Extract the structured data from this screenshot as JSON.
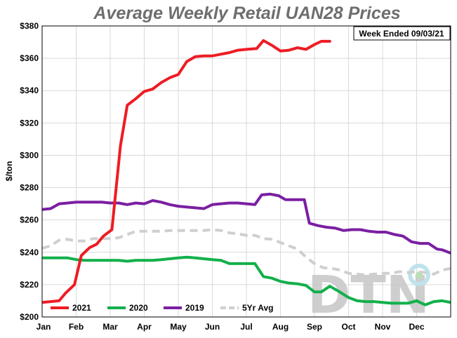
{
  "chart_data": {
    "type": "line",
    "title": "Average Weekly Retail UAN28 Prices",
    "ylabel": "$/ton",
    "annotation": "Week Ended 09/03/21",
    "watermark": "DTN",
    "ylim": [
      200,
      380
    ],
    "yticks": [
      200,
      220,
      240,
      260,
      280,
      300,
      320,
      340,
      360,
      380
    ],
    "ytick_labels": [
      "$200",
      "$220",
      "$240",
      "$260",
      "$280",
      "$300",
      "$320",
      "$340",
      "$360",
      "$380"
    ],
    "xlim": [
      0,
      12
    ],
    "xticks": [
      0,
      1,
      2,
      3,
      4,
      5,
      6,
      7,
      8,
      9,
      10,
      11
    ],
    "xtick_labels": [
      "Jan",
      "Feb",
      "Mar",
      "Apr",
      "May",
      "Jun",
      "Jul",
      "Aug",
      "Sep",
      "Oct",
      "Nov",
      "Dec"
    ],
    "grid": true,
    "legend_position": "bottom",
    "series": [
      {
        "name": "2021",
        "color": "#ee1c24",
        "dashed": false,
        "points": [
          [
            0,
            209
          ],
          [
            0.25,
            209.5
          ],
          [
            0.5,
            210
          ],
          [
            0.7,
            215
          ],
          [
            0.95,
            220
          ],
          [
            1.15,
            238
          ],
          [
            1.4,
            243
          ],
          [
            1.6,
            245
          ],
          [
            1.8,
            250
          ],
          [
            2.05,
            254
          ],
          [
            2.3,
            306
          ],
          [
            2.5,
            331
          ],
          [
            2.75,
            335
          ],
          [
            3.0,
            339.5
          ],
          [
            3.25,
            341
          ],
          [
            3.5,
            345
          ],
          [
            3.75,
            348
          ],
          [
            4.0,
            350
          ],
          [
            4.25,
            358
          ],
          [
            4.5,
            361
          ],
          [
            4.75,
            361.5
          ],
          [
            5.0,
            361.5
          ],
          [
            5.25,
            362.5
          ],
          [
            5.5,
            363.5
          ],
          [
            5.75,
            365
          ],
          [
            6.0,
            365.5
          ],
          [
            6.3,
            366
          ],
          [
            6.5,
            371
          ],
          [
            6.75,
            368
          ],
          [
            7.0,
            364.5
          ],
          [
            7.25,
            365
          ],
          [
            7.5,
            366.5
          ],
          [
            7.75,
            365.5
          ],
          [
            8.0,
            368.5
          ],
          [
            8.2,
            370.5
          ],
          [
            8.45,
            370.5
          ]
        ]
      },
      {
        "name": "2020",
        "color": "#12b04b",
        "dashed": false,
        "points": [
          [
            0,
            236.5
          ],
          [
            0.25,
            236.5
          ],
          [
            0.5,
            236.5
          ],
          [
            0.75,
            236.5
          ],
          [
            1.0,
            235.5
          ],
          [
            1.25,
            235
          ],
          [
            1.5,
            235
          ],
          [
            1.75,
            235
          ],
          [
            2.0,
            235
          ],
          [
            2.25,
            235
          ],
          [
            2.5,
            234.5
          ],
          [
            2.75,
            235
          ],
          [
            3.0,
            235
          ],
          [
            3.25,
            235
          ],
          [
            3.5,
            235.5
          ],
          [
            3.75,
            236
          ],
          [
            4.0,
            236.5
          ],
          [
            4.25,
            237
          ],
          [
            4.5,
            236.5
          ],
          [
            4.75,
            236
          ],
          [
            5.0,
            235.5
          ],
          [
            5.25,
            235
          ],
          [
            5.5,
            233
          ],
          [
            5.75,
            233
          ],
          [
            6.0,
            233
          ],
          [
            6.25,
            233
          ],
          [
            6.5,
            225
          ],
          [
            6.75,
            224
          ],
          [
            7.0,
            222
          ],
          [
            7.25,
            221
          ],
          [
            7.5,
            220.5
          ],
          [
            7.75,
            219.5
          ],
          [
            8.0,
            215.5
          ],
          [
            8.2,
            215.5
          ],
          [
            8.45,
            219
          ],
          [
            8.7,
            216
          ],
          [
            9.0,
            212
          ],
          [
            9.25,
            210
          ],
          [
            9.5,
            209.5
          ],
          [
            9.75,
            209.5
          ],
          [
            10.0,
            209
          ],
          [
            10.25,
            208.5
          ],
          [
            10.5,
            208.5
          ],
          [
            10.75,
            208.5
          ],
          [
            11.0,
            210
          ],
          [
            11.1,
            209
          ],
          [
            11.25,
            207.5
          ],
          [
            11.5,
            209.5
          ],
          [
            11.75,
            210
          ],
          [
            12.0,
            209
          ]
        ]
      },
      {
        "name": "2019",
        "color": "#7b1fa2",
        "dashed": false,
        "points": [
          [
            0,
            266.5
          ],
          [
            0.25,
            267
          ],
          [
            0.5,
            270
          ],
          [
            0.75,
            270.5
          ],
          [
            1.0,
            271
          ],
          [
            1.25,
            271
          ],
          [
            1.5,
            271
          ],
          [
            1.75,
            271
          ],
          [
            2.0,
            270.5
          ],
          [
            2.25,
            270.5
          ],
          [
            2.5,
            269.5
          ],
          [
            2.75,
            270.5
          ],
          [
            3.0,
            270
          ],
          [
            3.25,
            272
          ],
          [
            3.5,
            271
          ],
          [
            3.75,
            269.5
          ],
          [
            4.0,
            268.5
          ],
          [
            4.25,
            268
          ],
          [
            4.5,
            267.5
          ],
          [
            4.75,
            267
          ],
          [
            5.0,
            269.5
          ],
          [
            5.25,
            270
          ],
          [
            5.5,
            270.5
          ],
          [
            5.75,
            270.5
          ],
          [
            6.0,
            270
          ],
          [
            6.25,
            269.5
          ],
          [
            6.45,
            275.5
          ],
          [
            6.7,
            276
          ],
          [
            6.95,
            275
          ],
          [
            7.15,
            272.5
          ],
          [
            7.4,
            272.5
          ],
          [
            7.7,
            272.5
          ],
          [
            7.85,
            258
          ],
          [
            8.1,
            256.5
          ],
          [
            8.35,
            255.5
          ],
          [
            8.6,
            255
          ],
          [
            8.85,
            253.5
          ],
          [
            9.1,
            254
          ],
          [
            9.35,
            254
          ],
          [
            9.6,
            253
          ],
          [
            9.85,
            252.5
          ],
          [
            10.1,
            252.5
          ],
          [
            10.35,
            251
          ],
          [
            10.6,
            250
          ],
          [
            10.85,
            246.5
          ],
          [
            11.1,
            245.5
          ],
          [
            11.35,
            245.5
          ],
          [
            11.6,
            242
          ],
          [
            11.75,
            241.5
          ],
          [
            12.0,
            239.5
          ],
          [
            12.25,
            240
          ]
        ]
      },
      {
        "name": "5Yr Avg",
        "color": "#cfcfcf",
        "dashed": true,
        "points": [
          [
            0,
            242.5
          ],
          [
            0.25,
            244
          ],
          [
            0.5,
            247.5
          ],
          [
            0.75,
            248
          ],
          [
            1.0,
            247
          ],
          [
            1.25,
            247
          ],
          [
            1.5,
            248.5
          ],
          [
            1.75,
            248.5
          ],
          [
            2.0,
            248.5
          ],
          [
            2.25,
            249
          ],
          [
            2.5,
            251
          ],
          [
            2.75,
            253
          ],
          [
            3.0,
            253
          ],
          [
            3.25,
            253
          ],
          [
            3.5,
            253
          ],
          [
            3.75,
            253.5
          ],
          [
            4.0,
            253.5
          ],
          [
            4.25,
            253.5
          ],
          [
            4.5,
            253.5
          ],
          [
            4.75,
            253.5
          ],
          [
            5.0,
            254
          ],
          [
            5.25,
            253.5
          ],
          [
            5.5,
            252
          ],
          [
            5.75,
            251.5
          ],
          [
            6.0,
            250.5
          ],
          [
            6.25,
            250.5
          ],
          [
            6.5,
            248.5
          ],
          [
            6.75,
            248
          ],
          [
            7.0,
            246
          ],
          [
            7.25,
            244
          ],
          [
            7.5,
            242
          ],
          [
            7.75,
            237
          ],
          [
            8.0,
            233
          ],
          [
            8.25,
            230.5
          ],
          [
            8.5,
            230
          ],
          [
            8.75,
            229
          ],
          [
            9.0,
            227
          ],
          [
            9.25,
            226.5
          ],
          [
            9.5,
            226
          ],
          [
            9.75,
            226.5
          ],
          [
            10.0,
            227
          ],
          [
            10.25,
            227
          ],
          [
            10.5,
            228
          ],
          [
            10.75,
            227.5
          ],
          [
            11.0,
            228
          ],
          [
            11.25,
            227.5
          ],
          [
            11.5,
            226.5
          ],
          [
            11.75,
            229
          ],
          [
            12.0,
            230
          ],
          [
            12.25,
            230
          ]
        ]
      }
    ]
  }
}
